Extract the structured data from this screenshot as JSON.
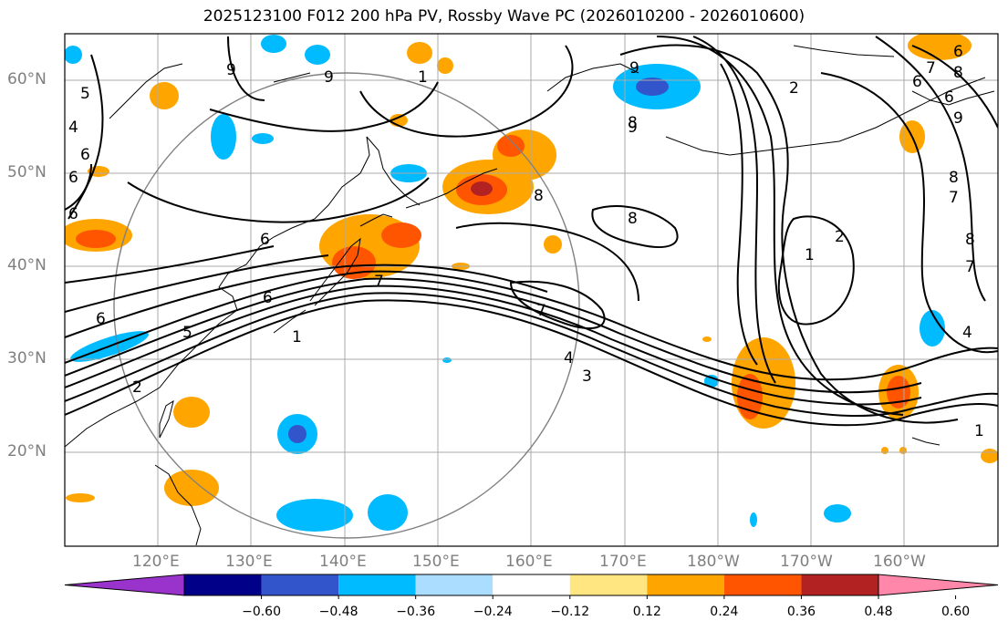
{
  "title": "2025123100 F012 200 hPa PV, Rossby Wave PC (2026010200 - 2026010600)",
  "lat_labels": [
    "60°N",
    "50°N",
    "40°N",
    "30°N",
    "20°N"
  ],
  "lon_labels": [
    "120°E",
    "130°E",
    "140°E",
    "150°E",
    "160°E",
    "170°E",
    "180°W",
    "170°W",
    "160°W"
  ],
  "contour_labels": [
    "9",
    "6",
    "5",
    "4",
    "6",
    "6",
    "9",
    "1",
    "9",
    "8",
    "9",
    "2",
    "8",
    "7",
    "6",
    "6",
    "6",
    "8",
    "8",
    "6",
    "8",
    "2",
    "1",
    "7",
    "7",
    "6",
    "5",
    "1",
    "2",
    "7",
    "4",
    "3",
    "4",
    "8",
    "7",
    "1",
    "9",
    "6"
  ],
  "colorbar": {
    "colors": [
      "#9933cc",
      "#000088",
      "#3355cc",
      "#00bbff",
      "#aaddff",
      "#ffffff",
      "#ffe680",
      "#ffa500",
      "#ff5500",
      "#b22222",
      "#ff88aa"
    ],
    "ticks": [
      "−0.60",
      "−0.48",
      "−0.36",
      "−0.24",
      "−0.12",
      "0.12",
      "0.24",
      "0.36",
      "0.48",
      "0.60"
    ]
  }
}
